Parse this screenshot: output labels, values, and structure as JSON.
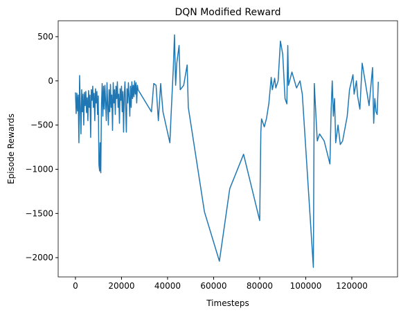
{
  "chart_data": {
    "type": "line",
    "title": "DQN Modified Reward",
    "x_label": "Timesteps",
    "y_label": "Episode Rewards",
    "color": "#1f77b4",
    "x": [
      0,
      300,
      600,
      900,
      1200,
      1500,
      1800,
      2100,
      2400,
      2700,
      3000,
      3300,
      3600,
      3900,
      4200,
      4500,
      4800,
      5100,
      5400,
      5700,
      6000,
      6300,
      6600,
      6900,
      7200,
      7500,
      7800,
      8100,
      8400,
      8700,
      9000,
      9300,
      9600,
      9900,
      10200,
      10500,
      10700,
      11000,
      11300,
      11600,
      11900,
      12200,
      12500,
      12800,
      13100,
      13400,
      13700,
      14000,
      14300,
      14600,
      14900,
      15200,
      15500,
      15800,
      16100,
      16400,
      16700,
      17000,
      17300,
      17600,
      17900,
      18200,
      18500,
      18800,
      19100,
      19400,
      19700,
      20000,
      20300,
      20600,
      20900,
      21200,
      21500,
      21800,
      22100,
      22400,
      22700,
      23000,
      23300,
      23600,
      23900,
      24200,
      24500,
      24800,
      25100,
      25400,
      25700,
      26000,
      26300,
      26600,
      26900,
      27200,
      33000,
      34000,
      35000,
      36000,
      37000,
      38000,
      41000,
      41500,
      42500,
      43000,
      43500,
      44000,
      45000,
      45500,
      47000,
      48500,
      49000,
      56000,
      62500,
      67000,
      73000,
      80000,
      80500,
      80800,
      82000,
      83000,
      84000,
      85000,
      85500,
      86500,
      87000,
      88000,
      89000,
      90000,
      91000,
      91800,
      92200,
      92500,
      94000,
      96000,
      97500,
      98500,
      103300,
      103700,
      105000,
      106000,
      108000,
      110500,
      111000,
      111500,
      112000,
      112500,
      113000,
      114000,
      115000,
      116000,
      118000,
      119000,
      120500,
      121000,
      122000,
      122500,
      123500,
      124500,
      127500,
      129000,
      129500,
      130000,
      130500,
      131000,
      131500
    ],
    "values": [
      -130,
      -370,
      -140,
      -340,
      -160,
      -700,
      60,
      -300,
      -600,
      -100,
      -350,
      -150,
      -500,
      -130,
      -280,
      -120,
      -360,
      -190,
      -450,
      -110,
      -300,
      -160,
      -640,
      -100,
      -220,
      -60,
      -300,
      -140,
      -450,
      -90,
      -250,
      -120,
      -380,
      -170,
      -950,
      -1020,
      -700,
      -1040,
      -280,
      -30,
      -400,
      -60,
      -320,
      -50,
      -250,
      -450,
      -20,
      -280,
      -500,
      -100,
      -350,
      -40,
      -300,
      -160,
      -560,
      -20,
      -250,
      -100,
      -380,
      -60,
      -200,
      -10,
      -300,
      -150,
      -480,
      -90,
      -220,
      -60,
      -350,
      -120,
      -580,
      -170,
      -10,
      -300,
      -580,
      -90,
      -250,
      -20,
      -180,
      -400,
      -60,
      -300,
      -10,
      -200,
      -50,
      -180,
      0,
      -150,
      -20,
      -250,
      -50,
      -100,
      -350,
      -30,
      -50,
      -450,
      -30,
      -350,
      -700,
      -400,
      150,
      520,
      -50,
      200,
      400,
      -100,
      -50,
      180,
      -300,
      -1480,
      -2040,
      -1220,
      -830,
      -1580,
      -580,
      -430,
      -520,
      -420,
      -250,
      40,
      -100,
      30,
      -80,
      0,
      450,
      300,
      -200,
      -260,
      400,
      -50,
      100,
      -80,
      0,
      -150,
      -2110,
      -30,
      -680,
      -600,
      -680,
      -940,
      -350,
      0,
      -400,
      -200,
      -700,
      -500,
      -720,
      -680,
      -400,
      -100,
      70,
      -150,
      0,
      -170,
      -320,
      200,
      -280,
      150,
      -480,
      -200,
      -350,
      -380,
      -10
    ],
    "xlim": [
      -7500,
      139850
    ],
    "ylim": [
      -2218,
      680
    ],
    "xticks": [
      0,
      20000,
      40000,
      60000,
      80000,
      100000,
      120000
    ],
    "yticks": [
      {
        "value": -2000,
        "label": "−2000"
      },
      {
        "value": -1500,
        "label": "−1500"
      },
      {
        "value": -1000,
        "label": "−1000"
      },
      {
        "value": -500,
        "label": "−500"
      },
      0,
      500
    ]
  }
}
